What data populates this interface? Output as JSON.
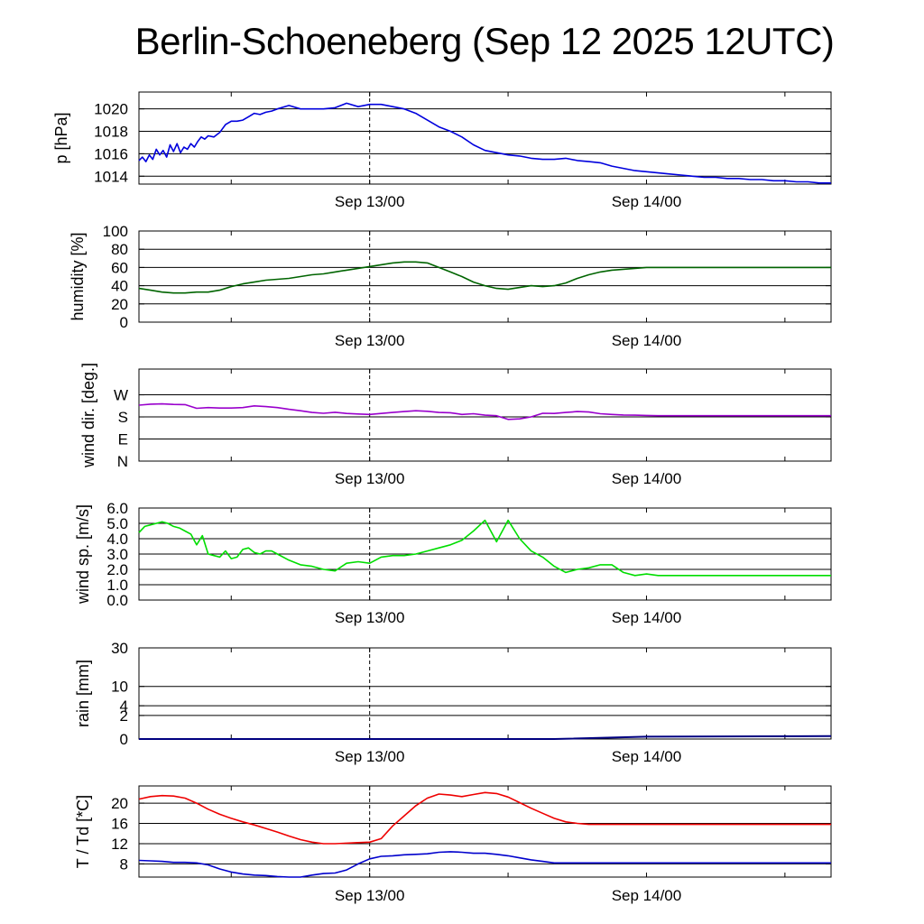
{
  "title": "Berlin-Schoeneberg (Sep 12 2025 12UTC)",
  "colors": {
    "pressure": "#0000dd",
    "humidity": "#006400",
    "wind_dir": "#9900cc",
    "wind_speed": "#00dd00",
    "rain": "#000080",
    "temperature": "#ee0000",
    "dewpoint": "#0000cc"
  },
  "chart_data": [
    {
      "type": "line",
      "id": "pressure",
      "ylabel": "p [hPa]",
      "x_hours_from_start": [
        0,
        0.3,
        0.6,
        0.9,
        1.2,
        1.5,
        1.8,
        2.1,
        2.4,
        2.7,
        3,
        3.3,
        3.6,
        3.9,
        4.2,
        4.5,
        4.8,
        5.1,
        5.4,
        5.7,
        6,
        6.5,
        7,
        7.5,
        8,
        8.5,
        9,
        9.5,
        10,
        10.5,
        11,
        11.5,
        12,
        13,
        14,
        15,
        16,
        17,
        18,
        19,
        20,
        21,
        22,
        23,
        24,
        25,
        26,
        27,
        28,
        29,
        30,
        31,
        32,
        33,
        34,
        35,
        36,
        37,
        38,
        39,
        40,
        41,
        42,
        43,
        44,
        45,
        46,
        47,
        48,
        49,
        50,
        51,
        52,
        53,
        54,
        55,
        56,
        57,
        58,
        59,
        60
      ],
      "series": [
        {
          "values": [
            1015.4,
            1015.7,
            1015.3,
            1015.9,
            1015.5,
            1016.4,
            1015.9,
            1016.3,
            1015.7,
            1016.8,
            1016.2,
            1016.9,
            1016.1,
            1016.6,
            1016.4,
            1016.9,
            1016.6,
            1017.1,
            1017.5,
            1017.3,
            1017.6,
            1017.5,
            1017.9,
            1018.6,
            1018.9,
            1018.9,
            1019.0,
            1019.3,
            1019.6,
            1019.5,
            1019.7,
            1019.8,
            1020.0,
            1020.3,
            1020.0,
            1020.0,
            1020.0,
            1020.1,
            1020.5,
            1020.2,
            1020.4,
            1020.4,
            1020.2,
            1020.0,
            1019.6,
            1019.0,
            1018.4,
            1018.0,
            1017.5,
            1016.8,
            1016.3,
            1016.1,
            1015.9,
            1015.8,
            1015.6,
            1015.5,
            1015.5,
            1015.6,
            1015.4,
            1015.3,
            1015.2,
            1014.9,
            1014.7,
            1014.5,
            1014.4,
            1014.3,
            1014.2,
            1014.1,
            1014.0,
            1013.9,
            1013.9,
            1013.8,
            1013.8,
            1013.7,
            1013.7,
            1013.6,
            1013.6,
            1013.5,
            1013.5,
            1013.4,
            1013.4
          ]
        }
      ],
      "ylim": [
        1013.3,
        1021.5
      ],
      "ticks": [
        1014,
        1016,
        1018,
        1020
      ],
      "tick_labels": [
        "1014",
        "1016",
        "1018",
        "1020"
      ]
    },
    {
      "type": "line",
      "id": "humidity",
      "ylabel": "humidity [%]",
      "x_hours_from_start": [
        0,
        1,
        2,
        3,
        4,
        5,
        6,
        7,
        8,
        9,
        10,
        11,
        12,
        13,
        14,
        15,
        16,
        17,
        18,
        19,
        20,
        21,
        22,
        23,
        24,
        25,
        26,
        27,
        28,
        29,
        30,
        31,
        32,
        33,
        34,
        35,
        36,
        37,
        38,
        39,
        40,
        41,
        42,
        43,
        44,
        45,
        46,
        47,
        48,
        49,
        50,
        51,
        52,
        53,
        54,
        55,
        56,
        57,
        58,
        59,
        60
      ],
      "series": [
        {
          "values": [
            37,
            35,
            33,
            32,
            32,
            33,
            33,
            35,
            39,
            42,
            44,
            46,
            47,
            48,
            50,
            52,
            53,
            55,
            57,
            59,
            61,
            63,
            65,
            66,
            66,
            65,
            60,
            55,
            50,
            44,
            40,
            37,
            36,
            38,
            40,
            39,
            40,
            43,
            48,
            52,
            55,
            57,
            58,
            59,
            60,
            60,
            60,
            60,
            60,
            60,
            60,
            60,
            60,
            60,
            60,
            60,
            60,
            60,
            60,
            60,
            60
          ]
        }
      ],
      "ylim": [
        0,
        100
      ],
      "ticks": [
        0,
        20,
        40,
        60,
        80,
        100
      ],
      "tick_labels": [
        "0",
        "20",
        "40",
        "60",
        "80",
        "100"
      ]
    },
    {
      "type": "line",
      "id": "wind_dir",
      "ylabel": "wind dir. [deg.]",
      "x_hours_from_start": [
        0,
        1,
        2,
        3,
        4,
        5,
        6,
        7,
        8,
        9,
        10,
        11,
        12,
        13,
        14,
        15,
        16,
        17,
        18,
        19,
        20,
        21,
        22,
        23,
        24,
        25,
        26,
        27,
        28,
        29,
        30,
        31,
        32,
        33,
        34,
        35,
        36,
        37,
        38,
        39,
        40,
        41,
        42,
        43,
        44,
        45,
        46,
        47,
        48,
        49,
        50,
        51,
        52,
        53,
        54,
        55,
        56,
        57,
        58,
        59,
        60
      ],
      "series": [
        {
          "values": [
            228,
            232,
            233,
            231,
            230,
            215,
            218,
            216,
            216,
            218,
            225,
            222,
            218,
            211,
            205,
            198,
            195,
            199,
            194,
            192,
            190,
            194,
            198,
            202,
            205,
            203,
            198,
            197,
            190,
            193,
            187,
            185,
            170,
            172,
            180,
            195,
            194,
            198,
            202,
            200,
            193,
            190,
            188,
            187,
            186,
            185,
            185,
            185,
            185,
            185,
            185,
            185,
            185,
            185,
            185,
            185,
            185,
            185,
            185,
            185,
            185
          ]
        }
      ],
      "ylim": [
        0,
        375
      ],
      "ticks": [
        0,
        90,
        180,
        270
      ],
      "tick_labels": [
        "N",
        "E",
        "S",
        "W"
      ]
    },
    {
      "type": "line",
      "id": "wind_speed",
      "ylabel": "wind sp. [m/s]",
      "x_hours_from_start": [
        0,
        0.5,
        1,
        1.5,
        2,
        2.5,
        3,
        3.5,
        4,
        4.5,
        5,
        5.5,
        6,
        6.5,
        7,
        7.5,
        8,
        8.5,
        9,
        9.5,
        10,
        10.5,
        11,
        11.5,
        12,
        13,
        14,
        15,
        16,
        17,
        18,
        19,
        20,
        21,
        22,
        23,
        24,
        25,
        26,
        27,
        28,
        29,
        30,
        31,
        32,
        33,
        34,
        35,
        36,
        37,
        38,
        39,
        40,
        41,
        42,
        43,
        44,
        45,
        46,
        47,
        48,
        49,
        50,
        51,
        52,
        53,
        54,
        55,
        56,
        57,
        58,
        59,
        60
      ],
      "series": [
        {
          "values": [
            4.4,
            4.8,
            4.9,
            5.0,
            5.1,
            5.0,
            4.8,
            4.7,
            4.5,
            4.3,
            3.6,
            4.2,
            3.0,
            2.9,
            2.8,
            3.2,
            2.7,
            2.8,
            3.3,
            3.4,
            3.1,
            3.0,
            3.2,
            3.2,
            3.0,
            2.6,
            2.3,
            2.2,
            2.0,
            1.9,
            2.4,
            2.5,
            2.4,
            2.8,
            2.9,
            2.9,
            3.0,
            3.2,
            3.4,
            3.6,
            3.9,
            4.5,
            5.2,
            3.8,
            5.2,
            4.0,
            3.2,
            2.8,
            2.2,
            1.8,
            2.0,
            2.1,
            2.3,
            2.3,
            1.8,
            1.6,
            1.7,
            1.6,
            1.6,
            1.6,
            1.6,
            1.6,
            1.6,
            1.6,
            1.6,
            1.6,
            1.6,
            1.6,
            1.6,
            1.6,
            1.6,
            1.6,
            1.6
          ]
        }
      ],
      "ylim": [
        0,
        6.0
      ],
      "ticks": [
        0.0,
        1.0,
        2.0,
        3.0,
        4.0,
        5.0,
        6.0
      ],
      "tick_labels": [
        "0.0",
        "1.0",
        "2.0",
        "3.0",
        "4.0",
        "5.0",
        "6.0"
      ]
    },
    {
      "type": "line",
      "id": "rain",
      "ylabel": "rain [mm]",
      "x_hours_from_start": [
        0,
        36,
        44,
        60
      ],
      "series": [
        {
          "values": [
            0,
            0,
            0.02,
            0.03
          ]
        }
      ],
      "ylim": [
        0,
        30
      ],
      "scale": "sqrt",
      "ticks": [
        0,
        2,
        4,
        10,
        30
      ],
      "tick_labels": [
        "0",
        "2",
        "4",
        "10",
        "30"
      ]
    },
    {
      "type": "line",
      "id": "temperature",
      "ylabel": "T / Td [*C]",
      "x_hours_from_start": [
        0,
        1,
        2,
        3,
        4,
        5,
        6,
        7,
        8,
        9,
        10,
        11,
        12,
        13,
        14,
        15,
        16,
        17,
        18,
        19,
        20,
        21,
        22,
        23,
        24,
        25,
        26,
        27,
        28,
        29,
        30,
        31,
        32,
        33,
        34,
        35,
        36,
        37,
        38,
        39,
        40,
        41,
        42,
        43,
        44,
        45,
        46,
        47,
        48,
        49,
        50,
        51,
        52,
        53,
        54,
        55,
        56,
        57,
        58,
        59,
        60
      ],
      "series": [
        {
          "name": "T",
          "values": [
            20.8,
            21.3,
            21.5,
            21.4,
            21.0,
            20.0,
            18.8,
            17.8,
            17.0,
            16.3,
            15.7,
            15.0,
            14.3,
            13.5,
            12.8,
            12.3,
            12.0,
            12.0,
            12.1,
            12.2,
            12.3,
            13.0,
            15.5,
            17.5,
            19.5,
            21.0,
            21.8,
            21.6,
            21.3,
            21.7,
            22.1,
            21.9,
            21.2,
            20.1,
            19.0,
            18.0,
            17.0,
            16.3,
            16.0,
            15.8,
            15.8,
            15.8,
            15.8,
            15.8,
            15.8,
            15.8,
            15.8,
            15.8,
            15.8,
            15.8,
            15.8,
            15.8,
            15.8,
            15.8,
            15.8,
            15.8,
            15.8,
            15.8,
            15.8,
            15.8,
            15.8
          ]
        },
        {
          "name": "Td",
          "values": [
            8.7,
            8.6,
            8.5,
            8.3,
            8.3,
            8.2,
            7.8,
            7.0,
            6.4,
            6.0,
            5.8,
            5.7,
            5.5,
            5.4,
            5.4,
            5.8,
            6.1,
            6.2,
            6.8,
            8.0,
            9.0,
            9.5,
            9.6,
            9.8,
            9.9,
            10.0,
            10.3,
            10.4,
            10.3,
            10.1,
            10.1,
            9.9,
            9.6,
            9.2,
            8.8,
            8.5,
            8.2,
            8.2,
            8.2,
            8.2,
            8.2,
            8.2,
            8.2,
            8.2,
            8.2,
            8.2,
            8.2,
            8.2,
            8.2,
            8.2,
            8.2,
            8.2,
            8.2,
            8.2,
            8.2,
            8.2,
            8.2,
            8.2,
            8.2,
            8.2,
            8.2
          ]
        }
      ],
      "ylim": [
        5.4,
        23.4
      ],
      "ticks": [
        8,
        12,
        16,
        20
      ],
      "tick_labels": [
        "8",
        "12",
        "16",
        "20"
      ]
    }
  ],
  "x_axis": {
    "hours_total": 60,
    "marks_hours": [
      20,
      44
    ],
    "mark_labels": [
      "Sep 13/00",
      "Sep 14/00"
    ],
    "now_marker_hours": 20
  }
}
